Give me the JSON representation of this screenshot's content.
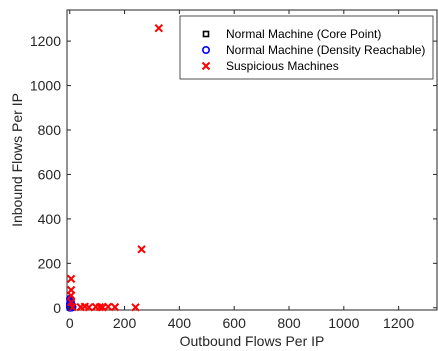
{
  "chart_data": {
    "type": "scatter",
    "title": "",
    "xlabel": "Outbound Flows Per IP",
    "ylabel": "Inbound Flows Per IP",
    "xlim": [
      -10,
      1340
    ],
    "ylim": [
      -10,
      1340
    ],
    "xticks": [
      0,
      200,
      400,
      600,
      800,
      1000,
      1200
    ],
    "yticks": [
      0,
      200,
      400,
      600,
      800,
      1000,
      1200
    ],
    "grid": false,
    "legend_position": "top-right",
    "series": [
      {
        "name": "Normal Machine (Core Point)",
        "marker": "square",
        "color": "#000000",
        "x": [
          1,
          2,
          3,
          2,
          4,
          1,
          3,
          5,
          2,
          4,
          1,
          3
        ],
        "y": [
          1,
          3,
          2,
          6,
          4,
          9,
          12,
          2,
          16,
          8,
          20,
          5
        ]
      },
      {
        "name": "Normal Machine (Density Reachable)",
        "marker": "circle",
        "color": "#0000ff",
        "x": [
          1,
          3,
          5,
          2,
          6,
          4,
          1,
          7,
          3,
          5,
          2,
          8,
          4,
          6,
          1,
          3,
          9,
          5,
          2,
          7,
          4,
          3,
          6,
          2,
          10,
          4,
          1,
          3
        ],
        "y": [
          0,
          1,
          2,
          4,
          3,
          5,
          8,
          1,
          10,
          7,
          13,
          2,
          15,
          9,
          18,
          21,
          4,
          12,
          25,
          6,
          28,
          31,
          16,
          34,
          3,
          38,
          40,
          26
        ]
      },
      {
        "name": "Suspicious Machines",
        "marker": "x",
        "color": "#ff0000",
        "x": [
          325,
          262,
          5,
          5,
          5,
          5,
          10,
          40,
          55,
          70,
          95,
          110,
          120,
          140,
          165,
          240
        ],
        "y": [
          1258,
          263,
          130,
          80,
          55,
          25,
          3,
          3,
          5,
          2,
          4,
          3,
          2,
          5,
          3,
          2
        ]
      }
    ]
  }
}
